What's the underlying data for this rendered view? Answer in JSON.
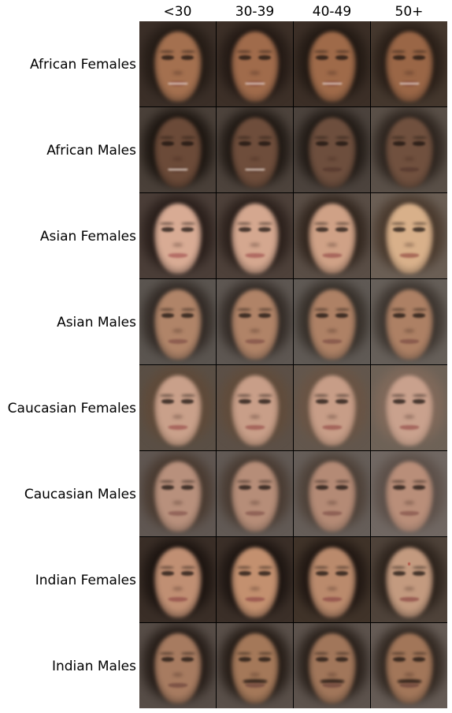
{
  "columns": [
    "<30",
    "30-39",
    "40-49",
    "50+"
  ],
  "rows": [
    {
      "label": "African Females",
      "cells": [
        {
          "bg": "#3b2f28",
          "hair": "#251c16",
          "skin": "#a4704f",
          "lip": "#8a4a3b",
          "teeth": true
        },
        {
          "bg": "#3d3028",
          "hair": "#241a15",
          "skin": "#a06b4b",
          "lip": "#874739",
          "teeth": true
        },
        {
          "bg": "#3c2f27",
          "hair": "#231a14",
          "skin": "#9f6a49",
          "lip": "#854637",
          "teeth": true
        },
        {
          "bg": "#45382e",
          "hair": "#2a1f18",
          "skin": "#9a6646",
          "lip": "#814434",
          "teeth": true
        }
      ]
    },
    {
      "label": "African Males",
      "cells": [
        {
          "bg": "#4a4039",
          "hair": "#1e1712",
          "skin": "#6b4a38",
          "lip": "#5a3a2e",
          "teeth": true
        },
        {
          "bg": "#4d433c",
          "hair": "#211a15",
          "skin": "#6e4d3b",
          "lip": "#5c3c30",
          "teeth": true
        },
        {
          "bg": "#4c433d",
          "hair": "#231c17",
          "skin": "#6d4e3d",
          "lip": "#5b3d31",
          "teeth": false
        },
        {
          "bg": "#5a5048",
          "hair": "#2f2620",
          "skin": "#70503e",
          "lip": "#5c3e32",
          "teeth": false
        }
      ]
    },
    {
      "label": "Asian Females",
      "cells": [
        {
          "bg": "#4b3e38",
          "hair": "#2a1f1b",
          "skin": "#d8ab94",
          "lip": "#b46e66",
          "teeth": false
        },
        {
          "bg": "#4e413a",
          "hair": "#2c211c",
          "skin": "#d4a78f",
          "lip": "#b06b62",
          "teeth": false
        },
        {
          "bg": "#5a4e46",
          "hair": "#33271f",
          "skin": "#cfa186",
          "lip": "#a8675c",
          "teeth": false
        },
        {
          "bg": "#6b5f55",
          "hair": "#4a3a2e",
          "skin": "#d8b08a",
          "lip": "#a86a58",
          "teeth": false
        }
      ]
    },
    {
      "label": "Asian Males",
      "cells": [
        {
          "bg": "#5b5550",
          "hair": "#332b26",
          "skin": "#b08468",
          "lip": "#8e5e50",
          "teeth": false
        },
        {
          "bg": "#5e5752",
          "hair": "#342c27",
          "skin": "#b08367",
          "lip": "#8d5d4f",
          "teeth": false
        },
        {
          "bg": "#605a55",
          "hair": "#37302a",
          "skin": "#ae8165",
          "lip": "#8b5c4e",
          "teeth": false
        },
        {
          "bg": "#67605a",
          "hair": "#3e3630",
          "skin": "#ad8064",
          "lip": "#8a5b4d",
          "teeth": false
        }
      ]
    },
    {
      "label": "Caucasian Females",
      "cells": [
        {
          "bg": "#5a4f45",
          "hair": "#5f4a39",
          "skin": "#c9a08a",
          "lip": "#a8675e",
          "teeth": false
        },
        {
          "bg": "#5c5047",
          "hair": "#614c3b",
          "skin": "#c89e88",
          "lip": "#a6665c",
          "teeth": false
        },
        {
          "bg": "#63574d",
          "hair": "#6a5444",
          "skin": "#c79d87",
          "lip": "#a4655b",
          "teeth": false
        },
        {
          "bg": "#6e6257",
          "hair": "#80695a",
          "skin": "#c9a18d",
          "lip": "#a5675e",
          "teeth": false
        }
      ]
    },
    {
      "label": "Caucasian Males",
      "cells": [
        {
          "bg": "#605752",
          "hair": "#4a3b31",
          "skin": "#b8907c",
          "lip": "#93655a",
          "teeth": false
        },
        {
          "bg": "#625a55",
          "hair": "#4a3c33",
          "skin": "#b68d78",
          "lip": "#916357",
          "teeth": false
        },
        {
          "bg": "#665e59",
          "hair": "#4f4239",
          "skin": "#b48a75",
          "lip": "#8f6155",
          "teeth": false
        },
        {
          "bg": "#716863",
          "hair": "#5d5049",
          "skin": "#b98e79",
          "lip": "#936357",
          "teeth": false
        }
      ]
    },
    {
      "label": "Indian Females",
      "cells": [
        {
          "bg": "#3a2e27",
          "hair": "#1d1511",
          "skin": "#c08f73",
          "lip": "#9c5d53",
          "teeth": false,
          "bindi": false
        },
        {
          "bg": "#3b2f28",
          "hair": "#1e1612",
          "skin": "#c3906f",
          "lip": "#9e5d52",
          "teeth": false,
          "bindi": false
        },
        {
          "bg": "#403329",
          "hair": "#211813",
          "skin": "#ba8a6c",
          "lip": "#985a50",
          "teeth": false,
          "bindi": false
        },
        {
          "bg": "#4f433a",
          "hair": "#2e241d",
          "skin": "#c39a7f",
          "lip": "#9a5e54",
          "teeth": false,
          "bindi": true
        }
      ]
    },
    {
      "label": "Indian Males",
      "cells": [
        {
          "bg": "#574d47",
          "hair": "#271e19",
          "skin": "#a77b60",
          "lip": "#7e5446",
          "mustache": false
        },
        {
          "bg": "#5a504a",
          "hair": "#271e18",
          "skin": "#a47859",
          "lip": "#7c5244",
          "mustache": true
        },
        {
          "bg": "#5d534d",
          "hair": "#2b221c",
          "skin": "#a1765a",
          "lip": "#7a5143",
          "mustache": true
        },
        {
          "bg": "#665c56",
          "hair": "#332922",
          "skin": "#a27659",
          "lip": "#795042",
          "mustache": true
        }
      ]
    }
  ]
}
